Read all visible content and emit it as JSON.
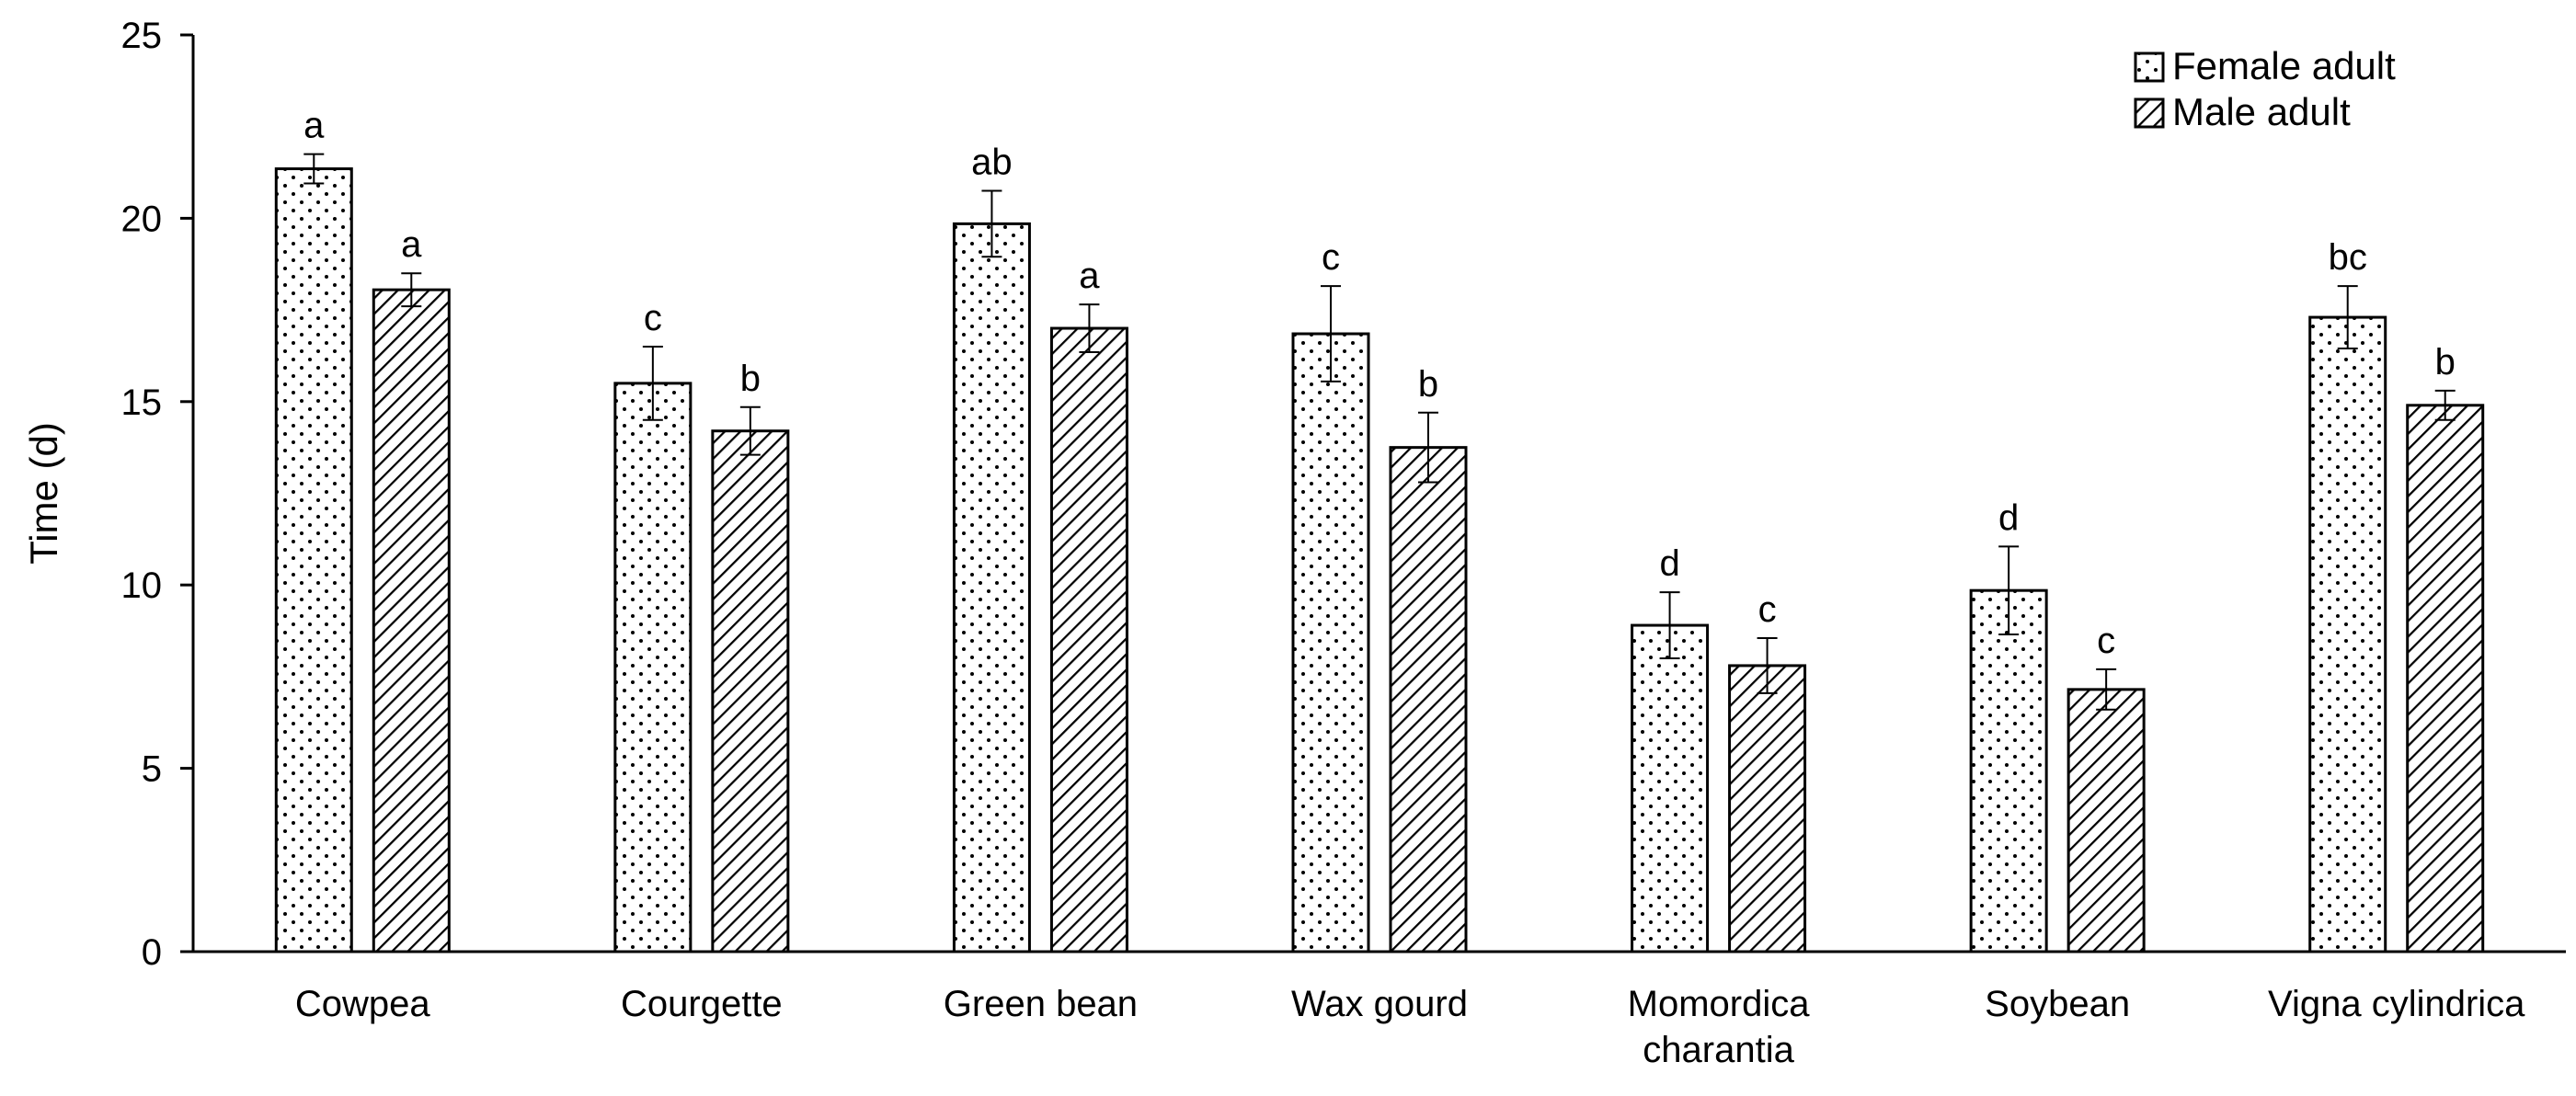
{
  "chart_data": {
    "type": "bar",
    "title": "",
    "xlabel": "",
    "ylabel": "Time (d)",
    "ylim": [
      0,
      25
    ],
    "yticks": [
      "0",
      "5",
      "10",
      "15",
      "20",
      "25"
    ],
    "grid": false,
    "legend_position": "top-right",
    "categories": [
      [
        "Cowpea"
      ],
      [
        "Courgette"
      ],
      [
        "Green bean"
      ],
      [
        "Wax gourd"
      ],
      [
        "Momordica",
        "charantia"
      ],
      [
        "Soybean"
      ],
      [
        "Vigna cylindrica"
      ]
    ],
    "series": [
      {
        "name": "Female adult",
        "pattern": "dots",
        "values": [
          21.35,
          15.5,
          19.85,
          16.85,
          8.9,
          9.85,
          17.3
        ],
        "errors": [
          0.4,
          1.0,
          0.9,
          1.3,
          0.9,
          1.2,
          0.85
        ],
        "letters": [
          "a",
          "c",
          "ab",
          "c",
          "d",
          "d",
          "bc"
        ]
      },
      {
        "name": "Male adult",
        "pattern": "diagonal-hatch",
        "values": [
          18.05,
          14.2,
          17.0,
          13.75,
          7.8,
          7.15,
          14.9
        ],
        "errors": [
          0.45,
          0.65,
          0.65,
          0.95,
          0.75,
          0.55,
          0.4
        ],
        "letters": [
          "a",
          "b",
          "a",
          "b",
          "c",
          "c",
          "b"
        ]
      }
    ],
    "colors": {
      "bar_fill": "#ffffff",
      "stroke": "#000000"
    }
  }
}
